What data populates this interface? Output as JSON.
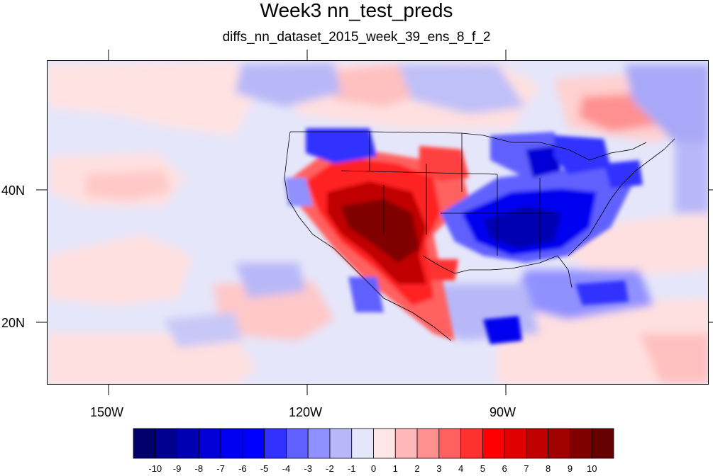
{
  "header": {
    "title": "Week3 nn_test_preds",
    "subtitle": "diffs_nn_dataset_2015_week_39_ens_8_f_2"
  },
  "axes": {
    "lon_labels": [
      "150W",
      "120W",
      "90W"
    ],
    "lat_labels": [
      "40N",
      "20N"
    ]
  },
  "colorbar": {
    "labels": [
      "-10",
      "-9",
      "-8",
      "-7",
      "-6",
      "-5",
      "-4",
      "-3",
      "-2",
      "-1",
      "0",
      "1",
      "2",
      "3",
      "4",
      "5",
      "6",
      "7",
      "8",
      "9",
      "10"
    ],
    "colors": [
      "#00006b",
      "#00008f",
      "#0000b3",
      "#0000d6",
      "#0000f0",
      "#0000ff",
      "#3030ff",
      "#6060ff",
      "#9090ff",
      "#b8b8f8",
      "#e6e6fa",
      "#ffe6e6",
      "#ffb8b8",
      "#ff9090",
      "#ff6060",
      "#ff3030",
      "#ff0000",
      "#e00000",
      "#c00000",
      "#a00000",
      "#800000",
      "#660000"
    ]
  },
  "map": {
    "region": "Contiguous United States, eastern North Pacific, northern Mexico",
    "field_palette": {
      "neutral": "#e8e8fa",
      "light_pos": "#ffe0e0",
      "light_neg": "#d8d8fa"
    }
  }
}
